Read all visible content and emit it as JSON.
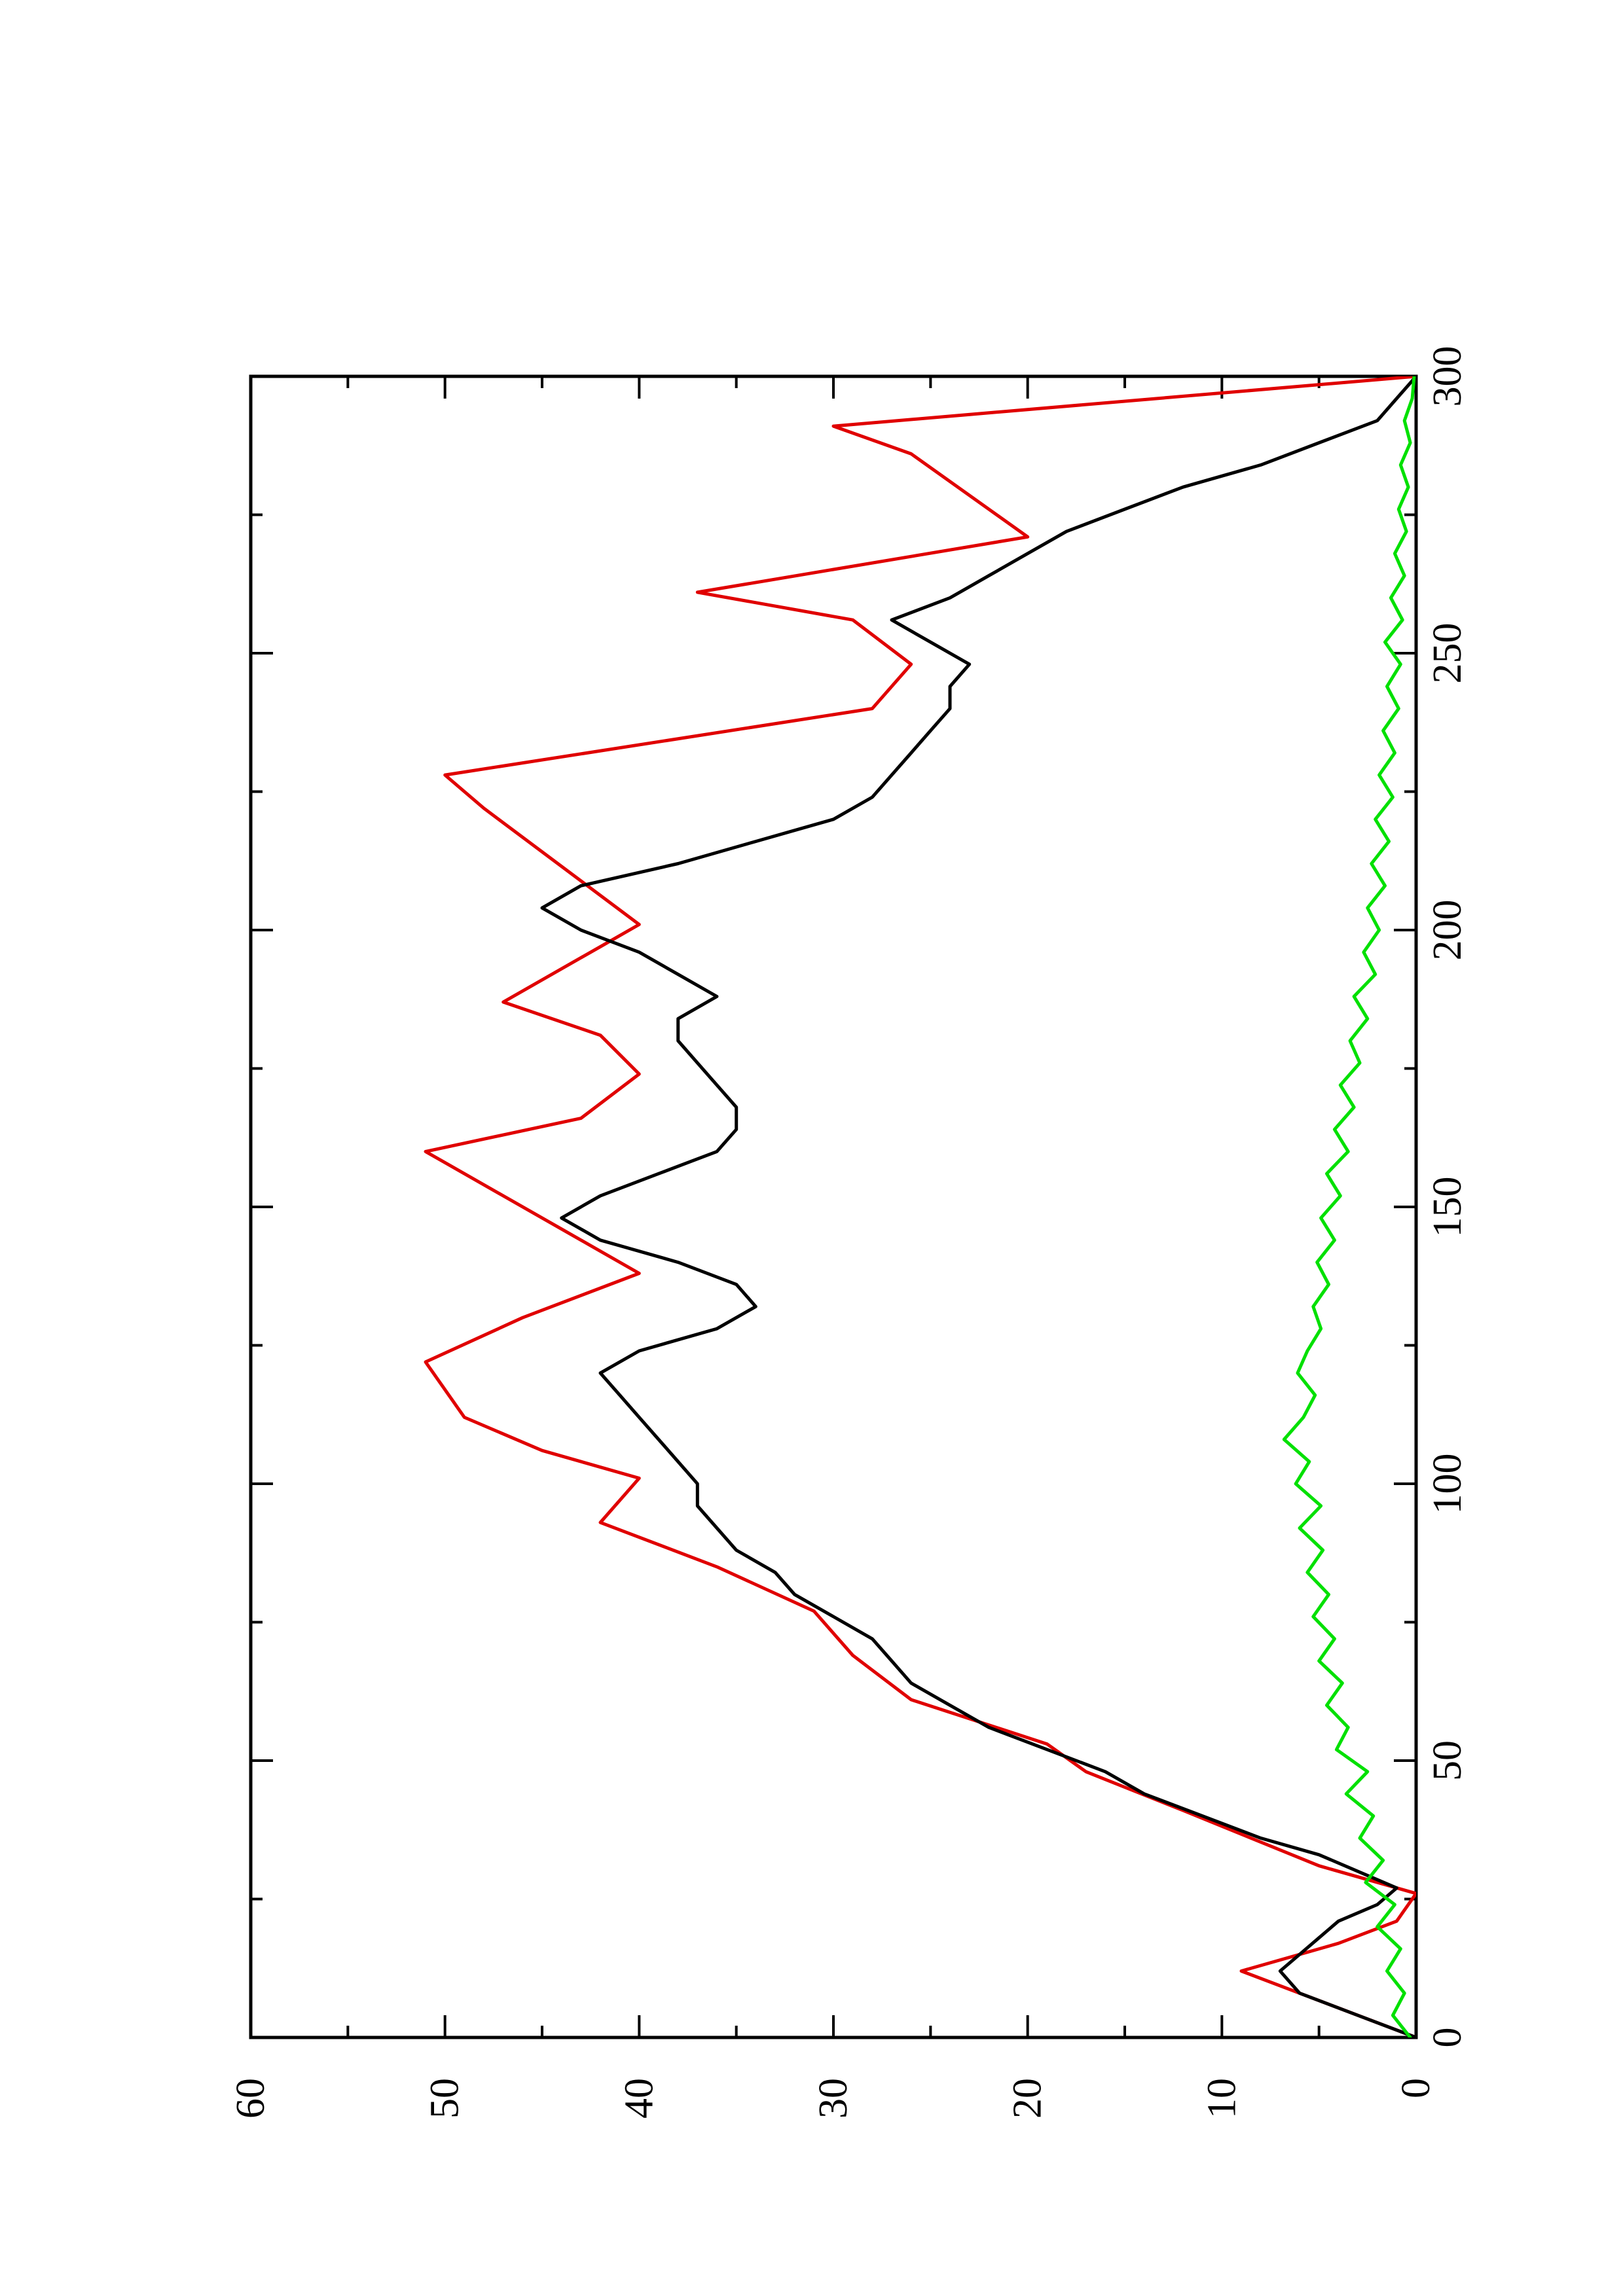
{
  "chart_data": {
    "type": "line",
    "title": "",
    "xlabel": "",
    "ylabel": "",
    "xlim": [
      0,
      300
    ],
    "ylim": [
      0,
      60
    ],
    "x_ticks_major": [
      0,
      50,
      100,
      150,
      200,
      250,
      300
    ],
    "x_ticks_minor": [
      25,
      75,
      125,
      175,
      225,
      275
    ],
    "y_ticks_major": [
      0,
      10,
      20,
      30,
      40,
      50,
      60
    ],
    "y_ticks_minor": [
      5,
      15,
      25,
      35,
      45,
      55
    ],
    "x_tick_labels": [
      "0",
      "50",
      "100",
      "150",
      "200",
      "250",
      "300"
    ],
    "y_tick_labels": [
      "0",
      "10",
      "20",
      "30",
      "40",
      "50",
      "60"
    ],
    "grid": false,
    "legend": "none",
    "orientation_note": "figure rotated 90 degrees counter-clockwise",
    "series": [
      {
        "color": "#e00000",
        "x": [
          0,
          12,
          12,
          17,
          17,
          21,
          21,
          26,
          31,
          31,
          41,
          41,
          48,
          48,
          53,
          53,
          61,
          61,
          69,
          69,
          77,
          77,
          85,
          85,
          93,
          93,
          101,
          101,
          106,
          106,
          112,
          112,
          122,
          122,
          130,
          130,
          138,
          138,
          146,
          146,
          160,
          160,
          166,
          166,
          174,
          174,
          181,
          181,
          187,
          187,
          197,
          197,
          201,
          201,
          222,
          222,
          228,
          228,
          240,
          240,
          248,
          248,
          256,
          256,
          261,
          261,
          271,
          271,
          286,
          286,
          291,
          300
        ],
        "y": [
          0,
          9,
          9,
          4,
          4,
          1,
          1,
          0,
          5,
          5,
          12,
          12,
          17,
          17,
          19,
          19,
          26,
          26,
          29,
          29,
          31,
          31,
          36,
          36,
          42,
          42,
          40,
          40,
          45,
          45,
          49,
          49,
          51,
          51,
          46,
          46,
          40,
          40,
          44,
          44,
          51,
          51,
          43,
          43,
          40,
          40,
          42,
          42,
          47,
          47,
          42,
          42,
          40,
          40,
          48,
          48,
          50,
          50,
          28,
          28,
          26,
          26,
          29,
          29,
          37,
          37,
          20,
          20,
          26,
          26,
          30,
          0
        ]
      },
      {
        "color": "#000000",
        "x": [
          0,
          4,
          8,
          12,
          15,
          18,
          21,
          24,
          27,
          30,
          33,
          36,
          40,
          44,
          48,
          52,
          56,
          60,
          64,
          68,
          72,
          76,
          80,
          84,
          88,
          92,
          96,
          100,
          104,
          108,
          112,
          116,
          120,
          124,
          128,
          132,
          136,
          140,
          144,
          148,
          152,
          156,
          160,
          164,
          168,
          172,
          176,
          180,
          184,
          188,
          192,
          196,
          200,
          204,
          208,
          212,
          216,
          220,
          224,
          228,
          232,
          236,
          240,
          244,
          248,
          252,
          256,
          260,
          264,
          268,
          272,
          276,
          280,
          284,
          288,
          292,
          296,
          300
        ],
        "y": [
          0,
          3,
          6,
          7,
          6,
          5,
          4,
          2,
          1,
          3,
          5,
          8,
          11,
          14,
          16,
          19,
          22,
          24,
          26,
          27,
          28,
          30,
          32,
          33,
          35,
          36,
          37,
          37,
          38,
          39,
          40,
          41,
          42,
          40,
          36,
          34,
          35,
          38,
          42,
          44,
          42,
          39,
          36,
          35,
          35,
          36,
          37,
          38,
          38,
          36,
          38,
          40,
          43,
          45,
          43,
          38,
          34,
          30,
          28,
          27,
          26,
          25,
          24,
          24,
          23,
          25,
          27,
          24,
          22,
          20,
          18,
          15,
          12,
          8,
          5,
          2,
          1,
          0
        ]
      },
      {
        "color": "#00e000",
        "x": [
          0,
          4,
          8,
          12,
          16,
          20,
          24,
          28,
          32,
          36,
          40,
          44,
          48,
          52,
          56,
          60,
          64,
          68,
          72,
          76,
          80,
          84,
          88,
          92,
          96,
          100,
          104,
          108,
          112,
          116,
          120,
          124,
          128,
          132,
          136,
          140,
          144,
          148,
          152,
          156,
          160,
          164,
          168,
          172,
          176,
          180,
          184,
          188,
          192,
          196,
          200,
          204,
          208,
          212,
          216,
          220,
          224,
          228,
          232,
          236,
          240,
          244,
          248,
          252,
          256,
          260,
          264,
          268,
          272,
          276,
          280,
          284,
          288,
          292,
          296,
          300
        ],
        "y": [
          0.3,
          1.2,
          0.6,
          1.5,
          0.8,
          2,
          1.1,
          2.6,
          1.7,
          2.9,
          2.2,
          3.6,
          2.5,
          4.1,
          3.5,
          4.6,
          3.8,
          5,
          4.2,
          5.3,
          4.5,
          5.6,
          4.8,
          6,
          4.9,
          6.2,
          5.5,
          6.8,
          5.8,
          5.2,
          6.1,
          5.6,
          4.9,
          5.3,
          4.5,
          5.1,
          4.2,
          4.9,
          3.9,
          4.6,
          3.5,
          4.2,
          3.2,
          3.9,
          2.9,
          3.4,
          2.5,
          3.2,
          2.1,
          2.7,
          1.9,
          2.5,
          1.6,
          2.3,
          1.4,
          2.1,
          1.2,
          1.9,
          1.1,
          1.7,
          0.9,
          1.5,
          0.8,
          1.6,
          0.7,
          1.3,
          0.6,
          1.1,
          0.5,
          0.9,
          0.4,
          0.8,
          0.3,
          0.6,
          0.2,
          0.1
        ]
      }
    ]
  }
}
